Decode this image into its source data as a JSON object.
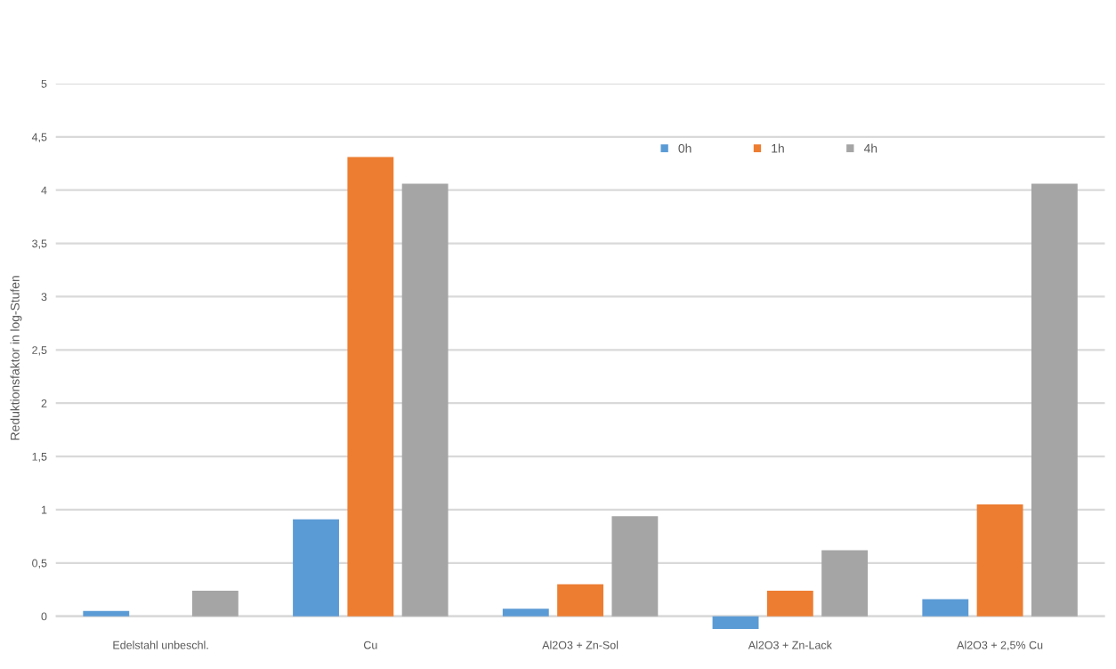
{
  "chart_data": {
    "type": "bar",
    "ylabel": "Reduktionsfaktor in log-Stufen",
    "categories": [
      "Edelstahl unbeschl.",
      "Cu",
      "Al2O3 + Zn-Sol",
      "Al2O3 + Zn-Lack",
      "Al2O3 + 2,5% Cu"
    ],
    "series": [
      {
        "name": "0h",
        "color": "#5b9bd5",
        "values": [
          0.05,
          0.91,
          0.07,
          -0.12,
          0.16
        ]
      },
      {
        "name": "1h",
        "color": "#ed7d31",
        "values": [
          0,
          4.31,
          0.3,
          0.24,
          1.05
        ]
      },
      {
        "name": "4h",
        "color": "#a5a5a5",
        "values": [
          0.24,
          4.06,
          0.94,
          0.62,
          4.06
        ]
      }
    ],
    "ylim": [
      -0.15,
      5
    ],
    "yticks": [
      0,
      {
        "value": 0.5,
        "label": "0,5"
      },
      1,
      {
        "value": 1.5,
        "label": "1,5"
      },
      2,
      {
        "value": 2.5,
        "label": "2,5"
      },
      3,
      {
        "value": 3.5,
        "label": "3,5"
      },
      4,
      {
        "value": 4.5,
        "label": "4,5"
      },
      5
    ],
    "grid": "y",
    "legend": "top"
  }
}
